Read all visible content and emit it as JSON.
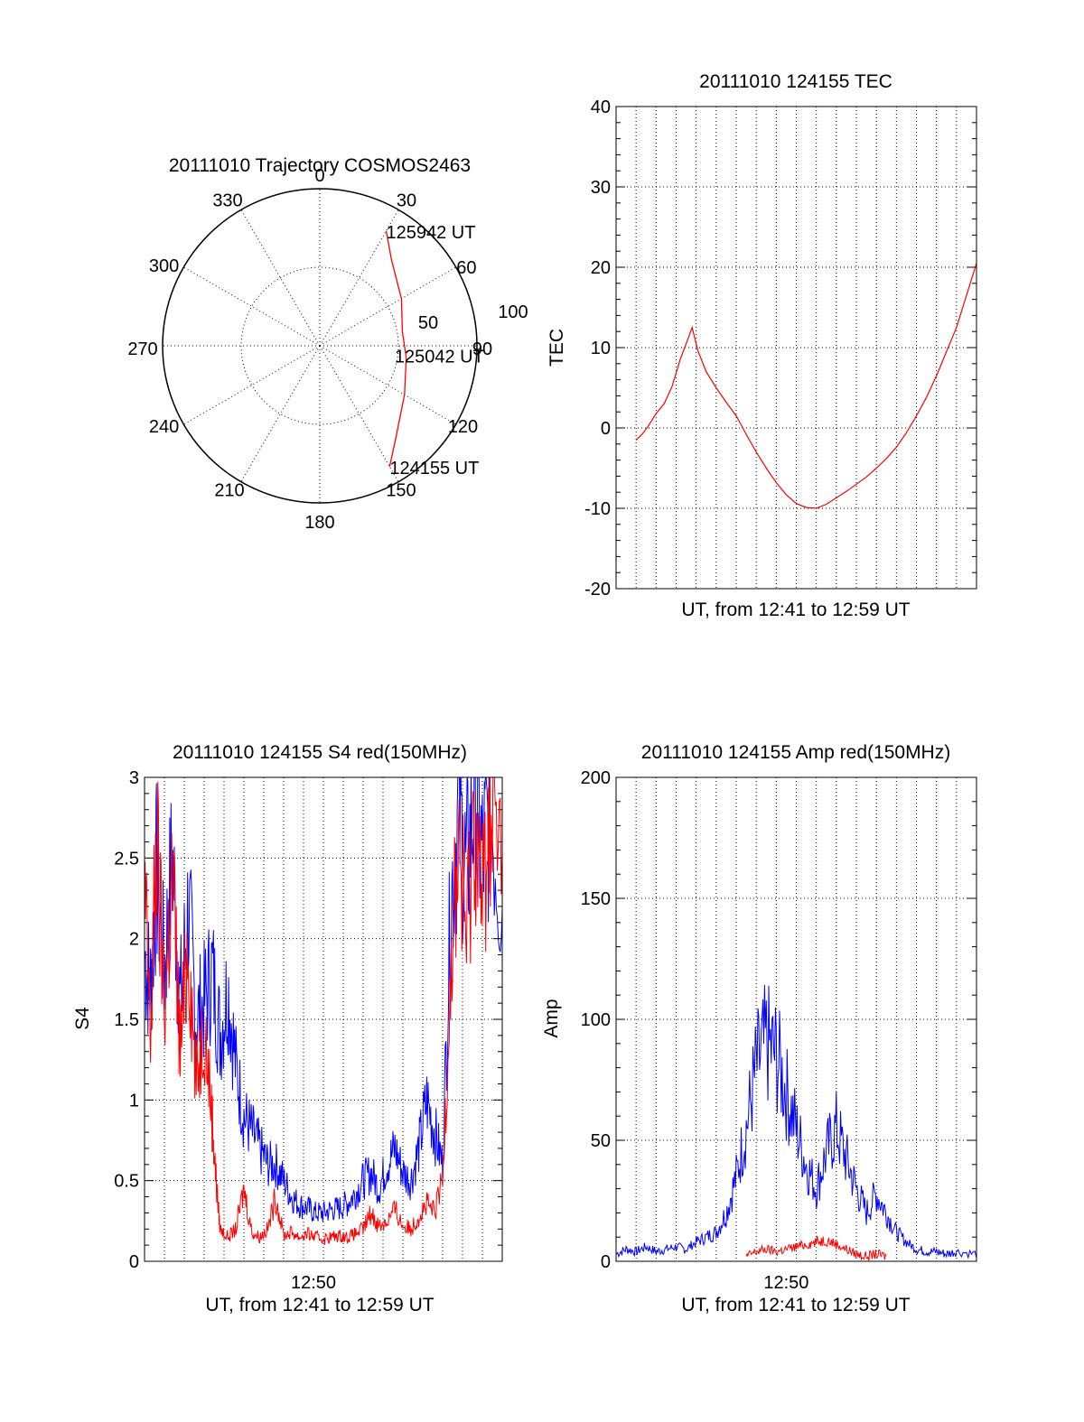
{
  "chart_data": [
    {
      "id": "trajectory",
      "type": "polar",
      "title": "20111010 Trajectory COSMOS2463",
      "azimuth_labels": [
        "0",
        "30",
        "60",
        "90",
        "120",
        "150",
        "180",
        "210",
        "240",
        "270",
        "300",
        "330"
      ],
      "radius_labels": [
        "50",
        "100"
      ],
      "grid": true,
      "series": [
        {
          "color": "#ff0000",
          "points": [
            {
              "az": 150,
              "el": 10
            },
            {
              "az": 140,
              "el": 22
            },
            {
              "az": 120,
              "el": 34
            },
            {
              "az": 98,
              "el": 40
            },
            {
              "az": 80,
              "el": 42
            },
            {
              "az": 60,
              "el": 36
            },
            {
              "az": 40,
              "el": 26
            },
            {
              "az": 30,
              "el": 14
            }
          ]
        }
      ],
      "annotations": [
        {
          "text": "125942 UT",
          "az": 30,
          "el": 14
        },
        {
          "text": "125042 UT",
          "az": 93,
          "el": 45
        },
        {
          "text": "124155 UT",
          "az": 150,
          "el": 10
        }
      ]
    },
    {
      "id": "tec",
      "type": "line",
      "title": "20111010 124155 TEC",
      "xlabel": "UT, from 12:41 to 12:59 UT",
      "ylabel": "TEC",
      "xlim": [
        0,
        18
      ],
      "ylim": [
        -20,
        40
      ],
      "yticks": [
        -20,
        -10,
        0,
        10,
        20,
        30,
        40
      ],
      "x_tick_labels": [],
      "grid": true,
      "series": [
        {
          "color": "#ff0000",
          "points": [
            {
              "x": 1.0,
              "y": -1.5
            },
            {
              "x": 1.3,
              "y": -0.8
            },
            {
              "x": 1.6,
              "y": 0.2
            },
            {
              "x": 2.0,
              "y": 1.8
            },
            {
              "x": 2.4,
              "y": 3.0
            },
            {
              "x": 2.8,
              "y": 5.2
            },
            {
              "x": 3.2,
              "y": 8.5
            },
            {
              "x": 3.5,
              "y": 10.5
            },
            {
              "x": 3.8,
              "y": 12.5
            },
            {
              "x": 4.1,
              "y": 9.5
            },
            {
              "x": 4.5,
              "y": 7.0
            },
            {
              "x": 5.0,
              "y": 5.0
            },
            {
              "x": 5.5,
              "y": 3.2
            },
            {
              "x": 6.0,
              "y": 1.5
            },
            {
              "x": 6.5,
              "y": -0.8
            },
            {
              "x": 7.0,
              "y": -3.0
            },
            {
              "x": 7.5,
              "y": -5.0
            },
            {
              "x": 8.0,
              "y": -6.8
            },
            {
              "x": 8.5,
              "y": -8.3
            },
            {
              "x": 9.0,
              "y": -9.4
            },
            {
              "x": 9.5,
              "y": -9.9
            },
            {
              "x": 10.0,
              "y": -10.0
            },
            {
              "x": 10.5,
              "y": -9.5
            },
            {
              "x": 11.0,
              "y": -8.7
            },
            {
              "x": 11.5,
              "y": -7.9
            },
            {
              "x": 12.0,
              "y": -7.0
            },
            {
              "x": 12.5,
              "y": -6.1
            },
            {
              "x": 13.0,
              "y": -5.0
            },
            {
              "x": 13.5,
              "y": -3.8
            },
            {
              "x": 14.0,
              "y": -2.4
            },
            {
              "x": 14.5,
              "y": -0.6
            },
            {
              "x": 15.0,
              "y": 1.5
            },
            {
              "x": 15.5,
              "y": 3.8
            },
            {
              "x": 16.0,
              "y": 6.5
            },
            {
              "x": 16.5,
              "y": 9.5
            },
            {
              "x": 17.0,
              "y": 12.5
            },
            {
              "x": 17.5,
              "y": 16.5
            },
            {
              "x": 18.0,
              "y": 20.5
            }
          ]
        }
      ]
    },
    {
      "id": "s4",
      "type": "line",
      "title": "20111010 124155 S4 red(150MHz)",
      "xlabel": "UT, from 12:41 to 12:59 UT",
      "ylabel": "S4",
      "xlim": [
        0,
        18
      ],
      "ylim": [
        0,
        3
      ],
      "yticks": [
        0,
        0.5,
        1,
        1.5,
        2,
        2.5,
        3
      ],
      "ytick_labels": [
        "0",
        "0.5",
        "1",
        "1.5",
        "2",
        "2.5",
        "3"
      ],
      "x_tick_labels": [
        {
          "x": 8.5,
          "label": "12:50"
        }
      ],
      "grid": true,
      "series": [
        {
          "color": "#0000ff",
          "points": [
            {
              "x": 0.0,
              "y": 1.9
            },
            {
              "x": 0.3,
              "y": 1.7
            },
            {
              "x": 0.6,
              "y": 2.4
            },
            {
              "x": 1.0,
              "y": 1.8
            },
            {
              "x": 1.4,
              "y": 2.5
            },
            {
              "x": 1.8,
              "y": 1.6
            },
            {
              "x": 2.2,
              "y": 2.2
            },
            {
              "x": 2.6,
              "y": 1.5
            },
            {
              "x": 3.0,
              "y": 1.6
            },
            {
              "x": 3.4,
              "y": 1.8
            },
            {
              "x": 3.8,
              "y": 1.4
            },
            {
              "x": 4.2,
              "y": 1.7
            },
            {
              "x": 4.6,
              "y": 1.2
            },
            {
              "x": 5.0,
              "y": 0.9
            },
            {
              "x": 5.4,
              "y": 0.8
            },
            {
              "x": 5.8,
              "y": 0.7
            },
            {
              "x": 6.2,
              "y": 0.6
            },
            {
              "x": 6.6,
              "y": 0.6
            },
            {
              "x": 7.0,
              "y": 0.5
            },
            {
              "x": 7.4,
              "y": 0.4
            },
            {
              "x": 7.8,
              "y": 0.35
            },
            {
              "x": 8.2,
              "y": 0.33
            },
            {
              "x": 8.6,
              "y": 0.3
            },
            {
              "x": 9.0,
              "y": 0.3
            },
            {
              "x": 9.4,
              "y": 0.32
            },
            {
              "x": 9.8,
              "y": 0.33
            },
            {
              "x": 10.2,
              "y": 0.36
            },
            {
              "x": 10.6,
              "y": 0.42
            },
            {
              "x": 11.0,
              "y": 0.5
            },
            {
              "x": 11.4,
              "y": 0.55
            },
            {
              "x": 11.8,
              "y": 0.45
            },
            {
              "x": 12.2,
              "y": 0.6
            },
            {
              "x": 12.6,
              "y": 0.7
            },
            {
              "x": 13.0,
              "y": 0.55
            },
            {
              "x": 13.4,
              "y": 0.5
            },
            {
              "x": 13.8,
              "y": 0.7
            },
            {
              "x": 14.2,
              "y": 1.0
            },
            {
              "x": 14.6,
              "y": 0.8
            },
            {
              "x": 15.0,
              "y": 0.6
            },
            {
              "x": 15.4,
              "y": 2.2
            },
            {
              "x": 15.8,
              "y": 2.8
            },
            {
              "x": 16.2,
              "y": 2.4
            },
            {
              "x": 16.6,
              "y": 2.9
            },
            {
              "x": 17.0,
              "y": 2.5
            },
            {
              "x": 17.4,
              "y": 2.8
            },
            {
              "x": 18.0,
              "y": 2.2
            }
          ]
        },
        {
          "color": "#ff0000",
          "points": [
            {
              "x": 0.0,
              "y": 2.3
            },
            {
              "x": 0.3,
              "y": 1.4
            },
            {
              "x": 0.6,
              "y": 2.6
            },
            {
              "x": 1.0,
              "y": 1.6
            },
            {
              "x": 1.4,
              "y": 2.4
            },
            {
              "x": 1.8,
              "y": 1.3
            },
            {
              "x": 2.2,
              "y": 2.0
            },
            {
              "x": 2.6,
              "y": 1.1
            },
            {
              "x": 3.0,
              "y": 1.5
            },
            {
              "x": 3.4,
              "y": 0.9
            },
            {
              "x": 3.6,
              "y": 0.5
            },
            {
              "x": 3.8,
              "y": 0.2
            },
            {
              "x": 4.2,
              "y": 0.15
            },
            {
              "x": 4.6,
              "y": 0.2
            },
            {
              "x": 5.0,
              "y": 0.45
            },
            {
              "x": 5.4,
              "y": 0.18
            },
            {
              "x": 5.8,
              "y": 0.15
            },
            {
              "x": 6.2,
              "y": 0.2
            },
            {
              "x": 6.6,
              "y": 0.4
            },
            {
              "x": 7.0,
              "y": 0.16
            },
            {
              "x": 7.4,
              "y": 0.18
            },
            {
              "x": 7.8,
              "y": 0.15
            },
            {
              "x": 8.2,
              "y": 0.17
            },
            {
              "x": 8.6,
              "y": 0.15
            },
            {
              "x": 9.0,
              "y": 0.14
            },
            {
              "x": 9.4,
              "y": 0.15
            },
            {
              "x": 9.8,
              "y": 0.16
            },
            {
              "x": 10.2,
              "y": 0.15
            },
            {
              "x": 10.6,
              "y": 0.17
            },
            {
              "x": 11.0,
              "y": 0.2
            },
            {
              "x": 11.4,
              "y": 0.3
            },
            {
              "x": 11.8,
              "y": 0.22
            },
            {
              "x": 12.2,
              "y": 0.25
            },
            {
              "x": 12.6,
              "y": 0.32
            },
            {
              "x": 13.0,
              "y": 0.22
            },
            {
              "x": 13.4,
              "y": 0.2
            },
            {
              "x": 13.8,
              "y": 0.28
            },
            {
              "x": 14.2,
              "y": 0.35
            },
            {
              "x": 14.6,
              "y": 0.3
            },
            {
              "x": 15.0,
              "y": 0.5
            },
            {
              "x": 15.4,
              "y": 1.8
            },
            {
              "x": 15.8,
              "y": 2.6
            },
            {
              "x": 16.2,
              "y": 2.0
            },
            {
              "x": 16.6,
              "y": 2.8
            },
            {
              "x": 17.0,
              "y": 2.2
            },
            {
              "x": 17.4,
              "y": 2.9
            },
            {
              "x": 18.0,
              "y": 2.4
            }
          ]
        }
      ]
    },
    {
      "id": "amp",
      "type": "line",
      "title": "20111010 124155 Amp red(150MHz)",
      "xlabel": "UT, from 12:41 to 12:59 UT",
      "ylabel": "Amp",
      "xlim": [
        0,
        18
      ],
      "ylim": [
        0,
        200
      ],
      "yticks": [
        0,
        50,
        100,
        150,
        200
      ],
      "x_tick_labels": [
        {
          "x": 8.5,
          "label": "12:50"
        }
      ],
      "grid": true,
      "series": [
        {
          "color": "#0000ff",
          "points": [
            {
              "x": 0.0,
              "y": 3
            },
            {
              "x": 0.5,
              "y": 5
            },
            {
              "x": 1.0,
              "y": 4
            },
            {
              "x": 1.5,
              "y": 6
            },
            {
              "x": 2.0,
              "y": 4
            },
            {
              "x": 2.5,
              "y": 5
            },
            {
              "x": 3.0,
              "y": 6
            },
            {
              "x": 3.5,
              "y": 5
            },
            {
              "x": 4.0,
              "y": 8
            },
            {
              "x": 4.5,
              "y": 10
            },
            {
              "x": 5.0,
              "y": 12
            },
            {
              "x": 5.5,
              "y": 20
            },
            {
              "x": 6.0,
              "y": 35
            },
            {
              "x": 6.5,
              "y": 55
            },
            {
              "x": 7.0,
              "y": 80
            },
            {
              "x": 7.5,
              "y": 90
            },
            {
              "x": 8.0,
              "y": 85
            },
            {
              "x": 8.5,
              "y": 70
            },
            {
              "x": 9.0,
              "y": 55
            },
            {
              "x": 9.5,
              "y": 40
            },
            {
              "x": 10.0,
              "y": 30
            },
            {
              "x": 10.5,
              "y": 45
            },
            {
              "x": 11.0,
              "y": 55
            },
            {
              "x": 11.5,
              "y": 42
            },
            {
              "x": 12.0,
              "y": 30
            },
            {
              "x": 12.5,
              "y": 20
            },
            {
              "x": 13.0,
              "y": 28
            },
            {
              "x": 13.5,
              "y": 20
            },
            {
              "x": 14.0,
              "y": 12
            },
            {
              "x": 14.5,
              "y": 8
            },
            {
              "x": 15.0,
              "y": 5
            },
            {
              "x": 15.5,
              "y": 4
            },
            {
              "x": 16.0,
              "y": 4
            },
            {
              "x": 16.5,
              "y": 3
            },
            {
              "x": 17.0,
              "y": 4
            },
            {
              "x": 18.0,
              "y": 3
            }
          ]
        },
        {
          "color": "#ff0000",
          "points": [
            {
              "x": 6.5,
              "y": 2
            },
            {
              "x": 7.0,
              "y": 4
            },
            {
              "x": 7.5,
              "y": 5
            },
            {
              "x": 8.0,
              "y": 4
            },
            {
              "x": 8.5,
              "y": 5
            },
            {
              "x": 9.0,
              "y": 6
            },
            {
              "x": 9.5,
              "y": 7
            },
            {
              "x": 10.0,
              "y": 8
            },
            {
              "x": 10.5,
              "y": 9
            },
            {
              "x": 11.0,
              "y": 7
            },
            {
              "x": 11.5,
              "y": 5
            },
            {
              "x": 12.0,
              "y": 3
            },
            {
              "x": 12.5,
              "y": 2
            },
            {
              "x": 13.0,
              "y": 3
            },
            {
              "x": 13.5,
              "y": 2
            }
          ]
        }
      ]
    }
  ]
}
